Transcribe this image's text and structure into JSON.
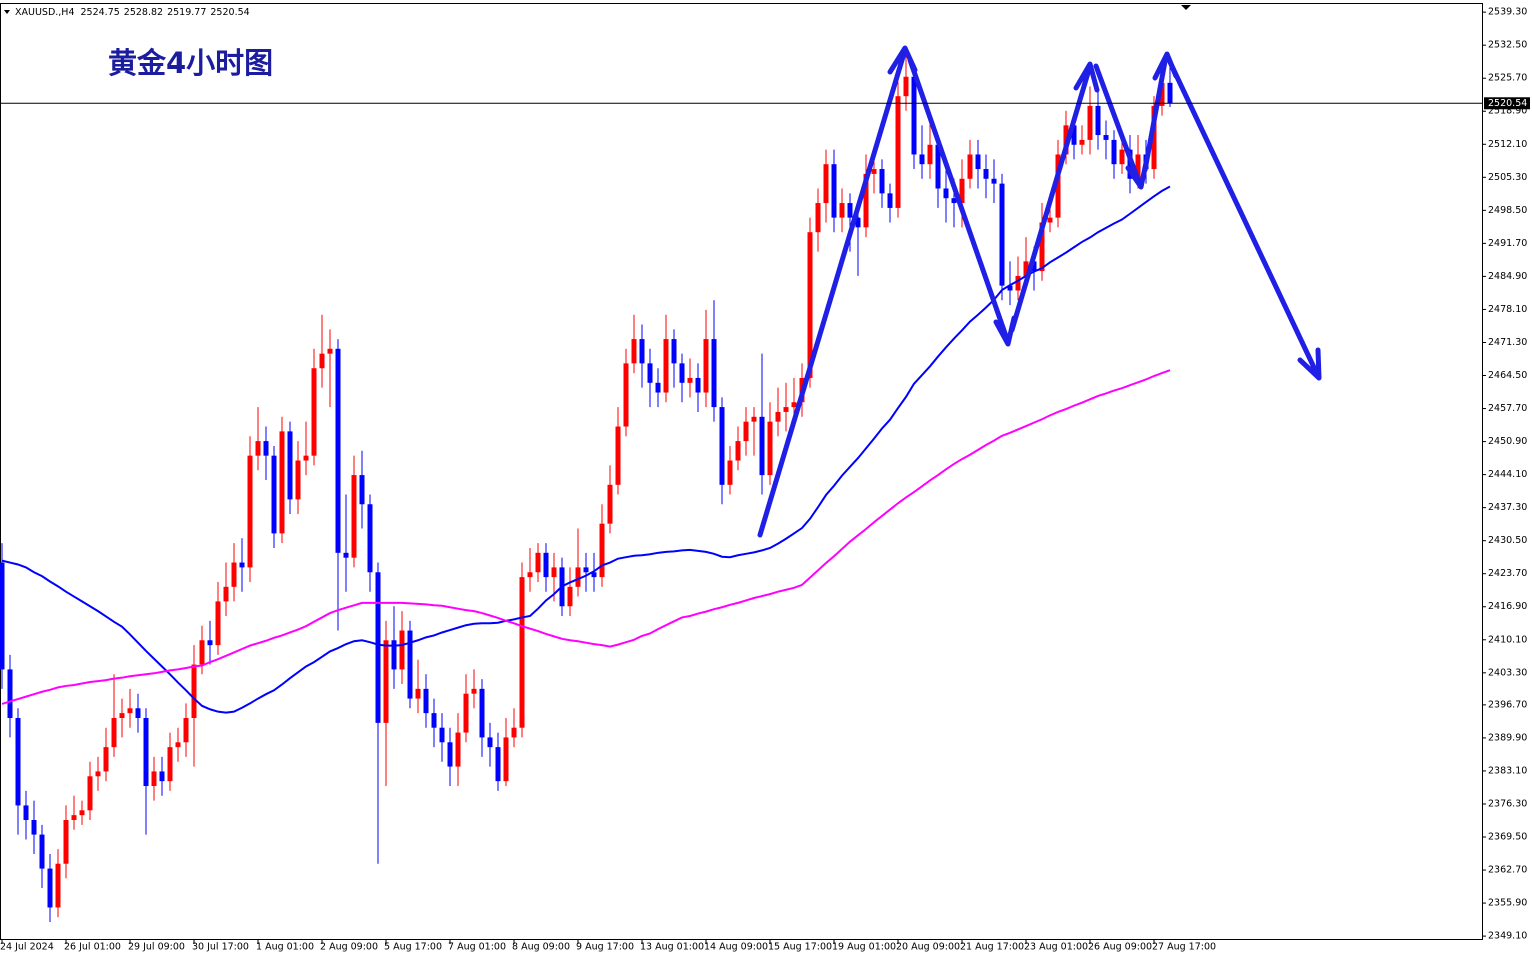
{
  "chart_data": {
    "type": "candlestick",
    "title": "黄金4小时图",
    "symbol": "XAUUSD.,H4",
    "categories": [
      "24 Jul 2024",
      null,
      null,
      null,
      null,
      null,
      null,
      null,
      "26 Jul 01:00",
      null,
      null,
      null,
      null,
      null,
      null,
      null,
      "29 Jul 09:00",
      null,
      null,
      null,
      null,
      null,
      null,
      null,
      "30 Jul 17:00",
      null,
      null,
      null,
      null,
      null,
      null,
      null,
      "1 Aug 01:00",
      null,
      null,
      null,
      null,
      null,
      null,
      null,
      "2 Aug 09:00",
      null,
      null,
      null,
      null,
      null,
      null,
      null,
      "5 Aug 17:00",
      null,
      null,
      null,
      null,
      null,
      null,
      null,
      "7 Aug 01:00",
      null,
      null,
      null,
      null,
      null,
      null,
      null,
      "8 Aug 09:00",
      null,
      null,
      null,
      null,
      null,
      null,
      null,
      "9 Aug 17:00",
      null,
      null,
      null,
      null,
      null,
      null,
      null,
      "13 Aug 01:00",
      null,
      null,
      null,
      null,
      null,
      null,
      null,
      "14 Aug 09:00",
      null,
      null,
      null,
      null,
      null,
      null,
      null,
      "15 Aug 17:00",
      null,
      null,
      null,
      null,
      null,
      null,
      null,
      "19 Aug 01:00",
      null,
      null,
      null,
      null,
      null,
      null,
      null,
      "20 Aug 09:00",
      null,
      null,
      null,
      null,
      null,
      null,
      null,
      "21 Aug 17:00",
      null,
      null,
      null,
      null,
      null,
      null,
      null,
      "23 Aug 01:00",
      null,
      null,
      null,
      null,
      null,
      null,
      null,
      "26 Aug 09:00",
      null,
      null,
      null,
      null,
      null,
      null,
      null,
      "27 Aug 17:00",
      null,
      null
    ],
    "open": [
      2426,
      2404,
      2394,
      2376,
      2373,
      2370,
      2363,
      2355,
      2364,
      2373,
      2374,
      2375,
      2382,
      2383,
      2388,
      2394,
      2395,
      2396,
      2394,
      2380,
      2383,
      2381,
      2388,
      2389,
      2394,
      2405,
      2410,
      2409,
      2418,
      2421,
      2426,
      2425,
      2448,
      2451,
      2448,
      2432,
      2453,
      2439,
      2447,
      2448,
      2466,
      2469,
      2470,
      2428,
      2427,
      2444,
      2438,
      2424,
      2393,
      2410,
      2404,
      2412,
      2398,
      2400,
      2395,
      2392,
      2389,
      2384,
      2391,
      2399,
      2400,
      2390,
      2388,
      2381,
      2390,
      2392,
      2423,
      2424,
      2428,
      2423,
      2425,
      2417,
      2421,
      2425,
      2424,
      2423,
      2434,
      2442,
      2454,
      2467,
      2472,
      2467,
      2463,
      2461,
      2472,
      2467,
      2463,
      2464,
      2461,
      2472,
      2458,
      2442,
      2447,
      2451,
      2455,
      2456,
      2444,
      2455,
      2457,
      2458,
      2459,
      2464,
      2494,
      2500,
      2508,
      2497,
      2500,
      2497,
      2495,
      2506,
      2507,
      2502,
      2499,
      2522,
      2526,
      2510,
      2508,
      2512,
      2503,
      2501,
      2500,
      2505,
      2510,
      2507,
      2505,
      2504,
      2483,
      2482,
      2485,
      2488,
      2486,
      2496,
      2497,
      2510,
      2516,
      2512,
      2513,
      2520,
      2514,
      2513,
      2508,
      2511,
      2505,
      2510,
      2507,
      2520,
      2524.75
    ],
    "high": [
      2430,
      2407,
      2396,
      2379,
      2377,
      2372,
      2366,
      2367,
      2376,
      2378,
      2377,
      2385,
      2386,
      2392,
      2403,
      2398,
      2400,
      2399,
      2396,
      2386,
      2386,
      2391,
      2392,
      2397,
      2409,
      2413,
      2414,
      2422,
      2426,
      2430,
      2431,
      2452,
      2458,
      2454,
      2450,
      2456,
      2455,
      2451,
      2455,
      2470,
      2477,
      2474,
      2472,
      2440,
      2448,
      2449,
      2440,
      2426,
      2414,
      2417,
      2416,
      2414,
      2406,
      2403,
      2398,
      2395,
      2392,
      2395,
      2403,
      2404,
      2402,
      2393,
      2391,
      2394,
      2396,
      2426,
      2429,
      2430,
      2430,
      2428,
      2427,
      2425,
      2433,
      2428,
      2428,
      2438,
      2446,
      2458,
      2470,
      2477,
      2475,
      2470,
      2466,
      2477,
      2474,
      2469,
      2468,
      2467,
      2478,
      2480,
      2460,
      2450,
      2454,
      2458,
      2458,
      2469,
      2459,
      2462,
      2463,
      2464,
      2467,
      2497,
      2503,
      2511,
      2511,
      2503,
      2502,
      2500,
      2510,
      2509,
      2509,
      2504,
      2525,
      2531,
      2528,
      2516,
      2517,
      2514,
      2508,
      2505,
      2509,
      2513,
      2513,
      2510,
      2509,
      2506,
      2488,
      2489,
      2493,
      2491,
      2500,
      2502,
      2513,
      2519,
      2518,
      2516,
      2524,
      2523,
      2517,
      2515,
      2515,
      2514,
      2514,
      2513,
      2522,
      2527,
      2528.82
    ],
    "low": [
      2400,
      2390,
      2370,
      2369,
      2366,
      2359,
      2352,
      2353,
      2361,
      2371,
      2372,
      2373,
      2379,
      2381,
      2386,
      2390,
      2392,
      2391,
      2370,
      2377,
      2378,
      2379,
      2385,
      2386,
      2384,
      2403,
      2405,
      2407,
      2415,
      2418,
      2420,
      2422,
      2445,
      2443,
      2429,
      2430,
      2436,
      2436,
      2444,
      2446,
      2462,
      2458,
      2412,
      2420,
      2425,
      2433,
      2420,
      2364,
      2380,
      2400,
      2401,
      2396,
      2395,
      2392,
      2388,
      2385,
      2380,
      2380,
      2389,
      2396,
      2386,
      2384,
      2379,
      2380,
      2388,
      2390,
      2420,
      2422,
      2420,
      2418,
      2415,
      2415,
      2419,
      2420,
      2420,
      2421,
      2432,
      2440,
      2452,
      2465,
      2462,
      2458,
      2458,
      2459,
      2462,
      2459,
      2460,
      2457,
      2458,
      2455,
      2438,
      2440,
      2445,
      2448,
      2448,
      2440,
      2442,
      2452,
      2453,
      2455,
      2456,
      2462,
      2490,
      2496,
      2494,
      2494,
      2490,
      2485,
      2493,
      2502,
      2499,
      2496,
      2497,
      2519,
      2507,
      2505,
      2505,
      2499,
      2496,
      2495,
      2495,
      2503,
      2503,
      2501,
      2500,
      2480,
      2479,
      2480,
      2483,
      2482,
      2484,
      2494,
      2495,
      2508,
      2509,
      2510,
      2510,
      2511,
      2509,
      2505,
      2506,
      2502,
      2503,
      2504,
      2505,
      2518,
      2519.77
    ],
    "close": [
      2404,
      2394,
      2376,
      2373,
      2370,
      2363,
      2355,
      2364,
      2373,
      2374,
      2375,
      2382,
      2383,
      2388,
      2394,
      2395,
      2396,
      2394,
      2380,
      2383,
      2381,
      2388,
      2389,
      2394,
      2405,
      2410,
      2409,
      2418,
      2421,
      2426,
      2425,
      2448,
      2451,
      2448,
      2432,
      2453,
      2439,
      2447,
      2448,
      2466,
      2469,
      2470,
      2428,
      2427,
      2444,
      2438,
      2424,
      2393,
      2410,
      2404,
      2412,
      2398,
      2400,
      2395,
      2392,
      2389,
      2384,
      2391,
      2399,
      2400,
      2390,
      2388,
      2381,
      2390,
      2392,
      2423,
      2424,
      2428,
      2423,
      2425,
      2417,
      2421,
      2425,
      2424,
      2423,
      2434,
      2442,
      2454,
      2467,
      2472,
      2467,
      2463,
      2461,
      2472,
      2467,
      2463,
      2464,
      2461,
      2472,
      2458,
      2442,
      2447,
      2451,
      2455,
      2456,
      2444,
      2455,
      2457,
      2458,
      2459,
      2464,
      2494,
      2500,
      2508,
      2497,
      2500,
      2497,
      2495,
      2506,
      2507,
      2502,
      2499,
      2522,
      2526,
      2510,
      2508,
      2512,
      2503,
      2501,
      2500,
      2505,
      2510,
      2507,
      2505,
      2504,
      2483,
      2482,
      2485,
      2488,
      2486,
      2496,
      2497,
      2510,
      2516,
      2512,
      2513,
      2520,
      2514,
      2513,
      2508,
      2511,
      2505,
      2510,
      2507,
      2520,
      2524.75,
      2520.54
    ],
    "up_color": "#ff0000",
    "down_color": "#0000ff",
    "series": [
      {
        "color": "#0000ff",
        "values": [
          2426.4,
          2426.0,
          2425.6,
          2425.0,
          2424.0,
          2423.2,
          2422.1,
          2421.1,
          2420.0,
          2419.0,
          2418.0,
          2417.0,
          2416.0,
          2414.9,
          2413.8,
          2412.8,
          2411.2,
          2409.5,
          2407.8,
          2406.2,
          2404.6,
          2403.0,
          2401.3,
          2399.7,
          2398.0,
          2396.5,
          2395.8,
          2395.3,
          2395.1,
          2395.3,
          2396.1,
          2397.0,
          2398.0,
          2398.9,
          2399.7,
          2400.9,
          2402.2,
          2403.4,
          2404.6,
          2405.5,
          2406.6,
          2407.7,
          2408.4,
          2409.2,
          2409.8,
          2410.0,
          2409.6,
          2409.1,
          2408.9,
          2408.9,
          2409.0,
          2409.5,
          2410.0,
          2410.6,
          2411.0,
          2411.6,
          2412.1,
          2412.6,
          2413.1,
          2413.4,
          2413.5,
          2413.5,
          2413.6,
          2414.0,
          2414.3,
          2414.7,
          2415.0,
          2416.5,
          2418.2,
          2419.5,
          2421.1,
          2421.9,
          2422.6,
          2423.3,
          2424.2,
          2425.4,
          2426.0,
          2426.8,
          2427.1,
          2427.4,
          2427.5,
          2427.7,
          2428.0,
          2428.2,
          2428.3,
          2428.5,
          2428.6,
          2428.4,
          2428.2,
          2427.8,
          2427.2,
          2427.1,
          2427.5,
          2427.8,
          2428.1,
          2428.5,
          2429.0,
          2429.9,
          2430.9,
          2432.0,
          2433.1,
          2435.0,
          2437.4,
          2439.9,
          2441.8,
          2443.9,
          2445.7,
          2447.5,
          2449.5,
          2451.5,
          2453.6,
          2455.4,
          2457.8,
          2460.1,
          2462.8,
          2464.6,
          2466.4,
          2468.4,
          2470.3,
          2472.1,
          2473.8,
          2475.6,
          2477.0,
          2478.5,
          2480.1,
          2482.1,
          2483.1,
          2484.0,
          2485.0,
          2485.9,
          2486.6,
          2487.8,
          2488.8,
          2489.8,
          2490.9,
          2492.0,
          2492.9,
          2494.0,
          2494.9,
          2495.8,
          2496.6,
          2497.8,
          2499.0,
          2500.2,
          2501.4,
          2502.5,
          2503.4
        ]
      },
      {
        "color": "#ff00ff",
        "values": [
          2396.9,
          2397.4,
          2397.9,
          2398.4,
          2398.9,
          2399.4,
          2399.8,
          2400.3,
          2400.6,
          2400.8,
          2401.1,
          2401.4,
          2401.6,
          2401.8,
          2402.1,
          2402.3,
          2402.6,
          2402.8,
          2403.0,
          2403.2,
          2403.5,
          2403.8,
          2404.0,
          2404.3,
          2404.6,
          2404.8,
          2405.5,
          2406.1,
          2406.8,
          2407.5,
          2408.2,
          2408.9,
          2409.4,
          2409.9,
          2410.5,
          2411.0,
          2411.6,
          2412.2,
          2412.9,
          2413.8,
          2414.7,
          2415.6,
          2416.2,
          2416.7,
          2417.2,
          2417.7,
          2417.7,
          2417.7,
          2417.7,
          2417.7,
          2417.7,
          2417.6,
          2417.5,
          2417.4,
          2417.2,
          2417.1,
          2416.8,
          2416.5,
          2416.2,
          2416.0,
          2415.6,
          2415.1,
          2414.6,
          2414.0,
          2413.5,
          2412.9,
          2412.4,
          2411.9,
          2411.3,
          2410.8,
          2410.3,
          2410.0,
          2409.8,
          2409.5,
          2409.2,
          2409.0,
          2408.7,
          2409.1,
          2409.6,
          2410.1,
          2410.9,
          2411.4,
          2412.3,
          2413.1,
          2413.9,
          2414.7,
          2415.0,
          2415.5,
          2415.9,
          2416.4,
          2416.8,
          2417.3,
          2417.7,
          2418.2,
          2418.7,
          2419.1,
          2419.5,
          2420.0,
          2420.4,
          2420.8,
          2421.4,
          2422.9,
          2424.4,
          2425.9,
          2427.3,
          2428.8,
          2430.3,
          2431.6,
          2432.9,
          2434.3,
          2435.6,
          2436.9,
          2438.2,
          2439.4,
          2440.5,
          2441.7,
          2442.9,
          2444.0,
          2445.2,
          2446.3,
          2447.3,
          2448.2,
          2449.2,
          2450.2,
          2451.1,
          2452.1,
          2452.7,
          2453.4,
          2454.1,
          2454.8,
          2455.5,
          2456.3,
          2457.0,
          2457.6,
          2458.3,
          2458.9,
          2459.6,
          2460.3,
          2460.8,
          2461.4,
          2461.9,
          2462.5,
          2463.1,
          2463.7,
          2464.4,
          2465.0,
          2465.6
        ]
      }
    ],
    "ylim": [
      2348.3,
      2541.8
    ],
    "yticks": [
      {
        "value": 2539.3,
        "label": "2539.30"
      },
      {
        "value": 2532.5,
        "label": "2532.50"
      },
      {
        "value": 2525.7,
        "label": "2525.70"
      },
      {
        "value": 2518.9,
        "label": "2518.90"
      },
      {
        "value": 2512.1,
        "label": "2512.10"
      },
      {
        "value": 2505.3,
        "label": "2505.30"
      },
      {
        "value": 2498.5,
        "label": "2498.50"
      },
      {
        "value": 2491.7,
        "label": "2491.70"
      },
      {
        "value": 2484.9,
        "label": "2484.90"
      },
      {
        "value": 2478.1,
        "label": "2478.10"
      },
      {
        "value": 2471.3,
        "label": "2471.30"
      },
      {
        "value": 2464.5,
        "label": "2464.50"
      },
      {
        "value": 2457.7,
        "label": "2457.70"
      },
      {
        "value": 2450.9,
        "label": "2450.90"
      },
      {
        "value": 2444.1,
        "label": "2444.10"
      },
      {
        "value": 2437.3,
        "label": "2437.30"
      },
      {
        "value": 2430.5,
        "label": "2430.50"
      },
      {
        "value": 2423.7,
        "label": "2423.70"
      },
      {
        "value": 2416.9,
        "label": "2416.90"
      },
      {
        "value": 2410.1,
        "label": "2410.10"
      },
      {
        "value": 2403.3,
        "label": "2403.30"
      },
      {
        "value": 2396.7,
        "label": "2396.70"
      },
      {
        "value": 2389.9,
        "label": "2389.90"
      },
      {
        "value": 2383.1,
        "label": "2383.10"
      },
      {
        "value": 2376.3,
        "label": "2376.30"
      },
      {
        "value": 2369.5,
        "label": "2369.50"
      },
      {
        "value": 2362.7,
        "label": "2362.70"
      },
      {
        "value": 2355.9,
        "label": "2355.90"
      },
      {
        "value": 2349.1,
        "label": "2349.10"
      }
    ],
    "grid": false
  }
}
